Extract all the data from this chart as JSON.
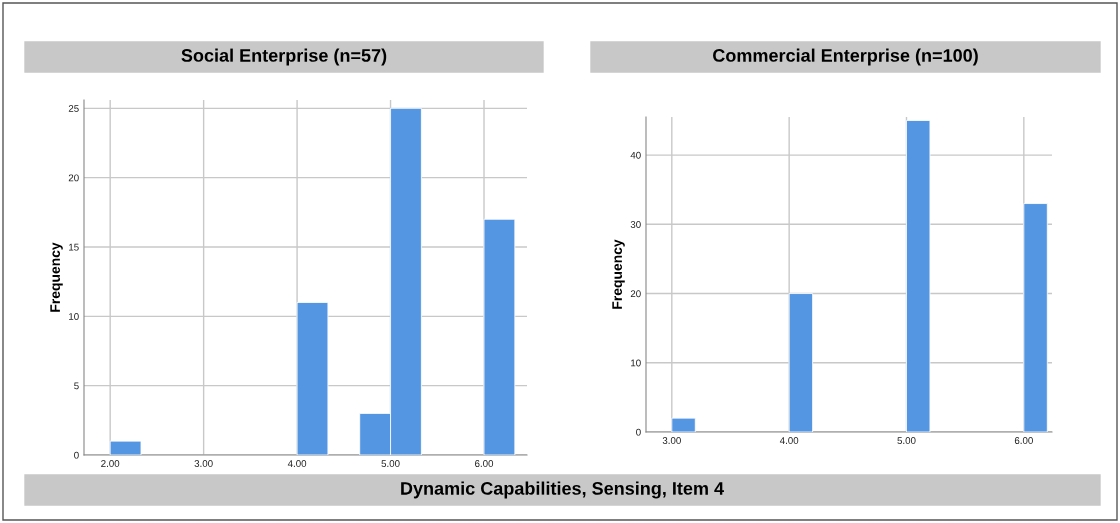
{
  "chart_data": [
    {
      "type": "histogram",
      "title": "Social Enterprise (n=57)",
      "ylabel": "Frequency",
      "color": "#5596e3",
      "bins": [
        2.0,
        2.33,
        4.0,
        4.33,
        4.67,
        5.0,
        5.33,
        6.0,
        6.33
      ],
      "values": [
        1,
        0,
        11,
        0,
        3,
        25,
        0,
        17
      ],
      "xlim": [
        1.72,
        6.46
      ],
      "ylim": [
        0,
        25.6
      ],
      "xticks": [
        {
          "value": 2,
          "label": "2.00"
        },
        {
          "value": 3,
          "label": "3.00"
        },
        {
          "value": 4,
          "label": "4.00"
        },
        {
          "value": 5,
          "label": "5.00"
        },
        {
          "value": 6,
          "label": "6.00"
        }
      ],
      "yticks": [
        0,
        5,
        10,
        15,
        20,
        25
      ],
      "grid": true,
      "annotations": [
        "Dynamic Capabilities, Sensing, Item 4"
      ]
    },
    {
      "type": "histogram",
      "title": "Commercial Enterprise (n=100)",
      "ylabel": "Frequency",
      "color": "#5596e3",
      "bins": [
        3.0,
        3.2,
        4.0,
        4.2,
        5.0,
        5.2,
        6.0,
        6.2
      ],
      "values": [
        2,
        0,
        20,
        0,
        45,
        0,
        33
      ],
      "xlim": [
        2.78,
        6.24
      ],
      "ylim": [
        0,
        45.5
      ],
      "xticks": [
        {
          "value": 3,
          "label": "3.00"
        },
        {
          "value": 4,
          "label": "4.00"
        },
        {
          "value": 5,
          "label": "5.00"
        },
        {
          "value": 6,
          "label": "6.00"
        }
      ],
      "yticks": [
        0,
        10,
        20,
        30,
        40
      ],
      "grid": true
    }
  ]
}
